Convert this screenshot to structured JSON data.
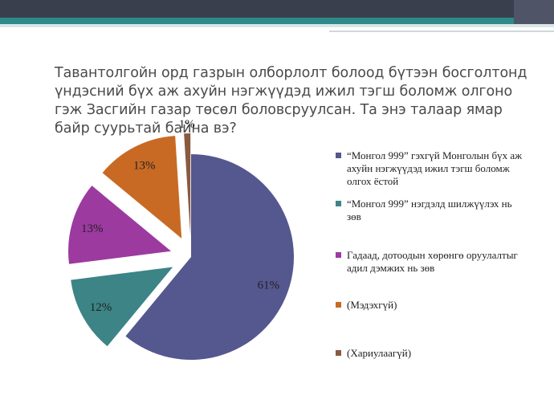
{
  "slide": {
    "title": "Тавантолгойн орд газрын олборлолт болоод бүтээн босголтонд үндэсний бүх аж ахуйн нэгжүүдэд ижил тэгш боломж олгоно гэж Засгийн газар төсөл боловсруулсан. Та энэ талаар ямар байр суурьтай байна вэ?"
  },
  "theme": {
    "banner_dark": "#3a3f4d",
    "banner_teal": "#2e8a8a"
  },
  "chart_data": {
    "type": "pie",
    "exploded": true,
    "series": [
      {
        "values": [
          61,
          12,
          13,
          13,
          1
        ],
        "data_labels": [
          "61%",
          "12%",
          "13%",
          "13%",
          "1%"
        ]
      }
    ],
    "categories": [
      "“Монгол 999” гэхгүй Монголын бүх аж ахуйн нэгжүүдэд ижил тэгш боломж олгох ёстой",
      "“Монгол 999” нэгдэлд шилжүүлэх нь зөв",
      "Гадаад, дотоодын хөрөнгө оруулалтыг адил дэмжих нь зөв",
      "(Мэдэхгүй)",
      "(Хариулаагүй)"
    ],
    "colors": [
      "#55578f",
      "#3c8486",
      "#9c3aa0",
      "#c96a24",
      "#8a5a40"
    ],
    "legend_position": "right"
  }
}
